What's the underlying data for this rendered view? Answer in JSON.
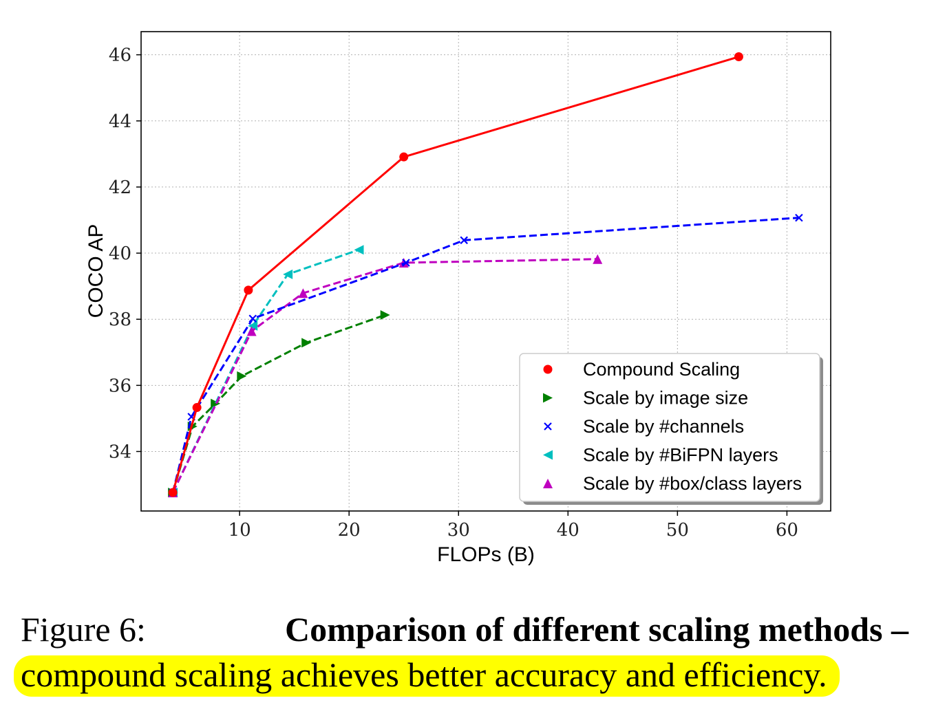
{
  "chart_data": {
    "type": "line",
    "title": "",
    "xlabel": "FLOPs (B)",
    "ylabel": "COCO AP",
    "xlim": [
      1,
      64
    ],
    "ylim": [
      32.2,
      46.7
    ],
    "xticks": [
      10,
      20,
      30,
      40,
      50,
      60
    ],
    "yticks": [
      34,
      36,
      38,
      40,
      42,
      44,
      46
    ],
    "grid": true,
    "legend_position": "lower-right",
    "series": [
      {
        "name": "Compound Scaling",
        "color": "#ff0000",
        "marker": "circle",
        "line_style": "solid",
        "x": [
          3.9,
          6.1,
          10.8,
          25.0,
          55.6
        ],
        "y": [
          32.76,
          35.33,
          38.88,
          42.91,
          45.94
        ]
      },
      {
        "name": "Scale by image size",
        "color": "#008000",
        "marker": "triangle-right",
        "line_style": "dashed",
        "x": [
          3.9,
          5.7,
          7.8,
          10.2,
          16.1,
          23.3
        ],
        "y": [
          32.76,
          34.76,
          35.45,
          36.28,
          37.29,
          38.13
        ]
      },
      {
        "name": "Scale by #channels",
        "color": "#0000ff",
        "marker": "x",
        "line_style": "dashed",
        "x": [
          3.9,
          5.6,
          11.2,
          25.2,
          30.5,
          61.1
        ],
        "y": [
          32.76,
          35.05,
          38.02,
          39.71,
          40.39,
          41.07
        ]
      },
      {
        "name": "Scale by #BiFPN layers",
        "color": "#00bfbf",
        "marker": "triangle-left",
        "line_style": "dashed",
        "x": [
          3.9,
          11.2,
          14.4,
          20.9
        ],
        "y": [
          32.76,
          37.8,
          39.36,
          40.1
        ]
      },
      {
        "name": "Scale by #box/class layers",
        "color": "#bf00bf",
        "marker": "triangle-up",
        "line_style": "dashed",
        "x": [
          3.9,
          11.1,
          15.8,
          25.0,
          42.7
        ],
        "y": [
          32.76,
          37.64,
          38.79,
          39.71,
          39.82
        ]
      }
    ]
  },
  "caption": {
    "label": "Figure 6:",
    "bold_text": "Comparison of different scaling methods –",
    "highlighted_text": "compound scaling achieves better accuracy and efficiency.",
    "highlight_color": "#ffff00"
  }
}
